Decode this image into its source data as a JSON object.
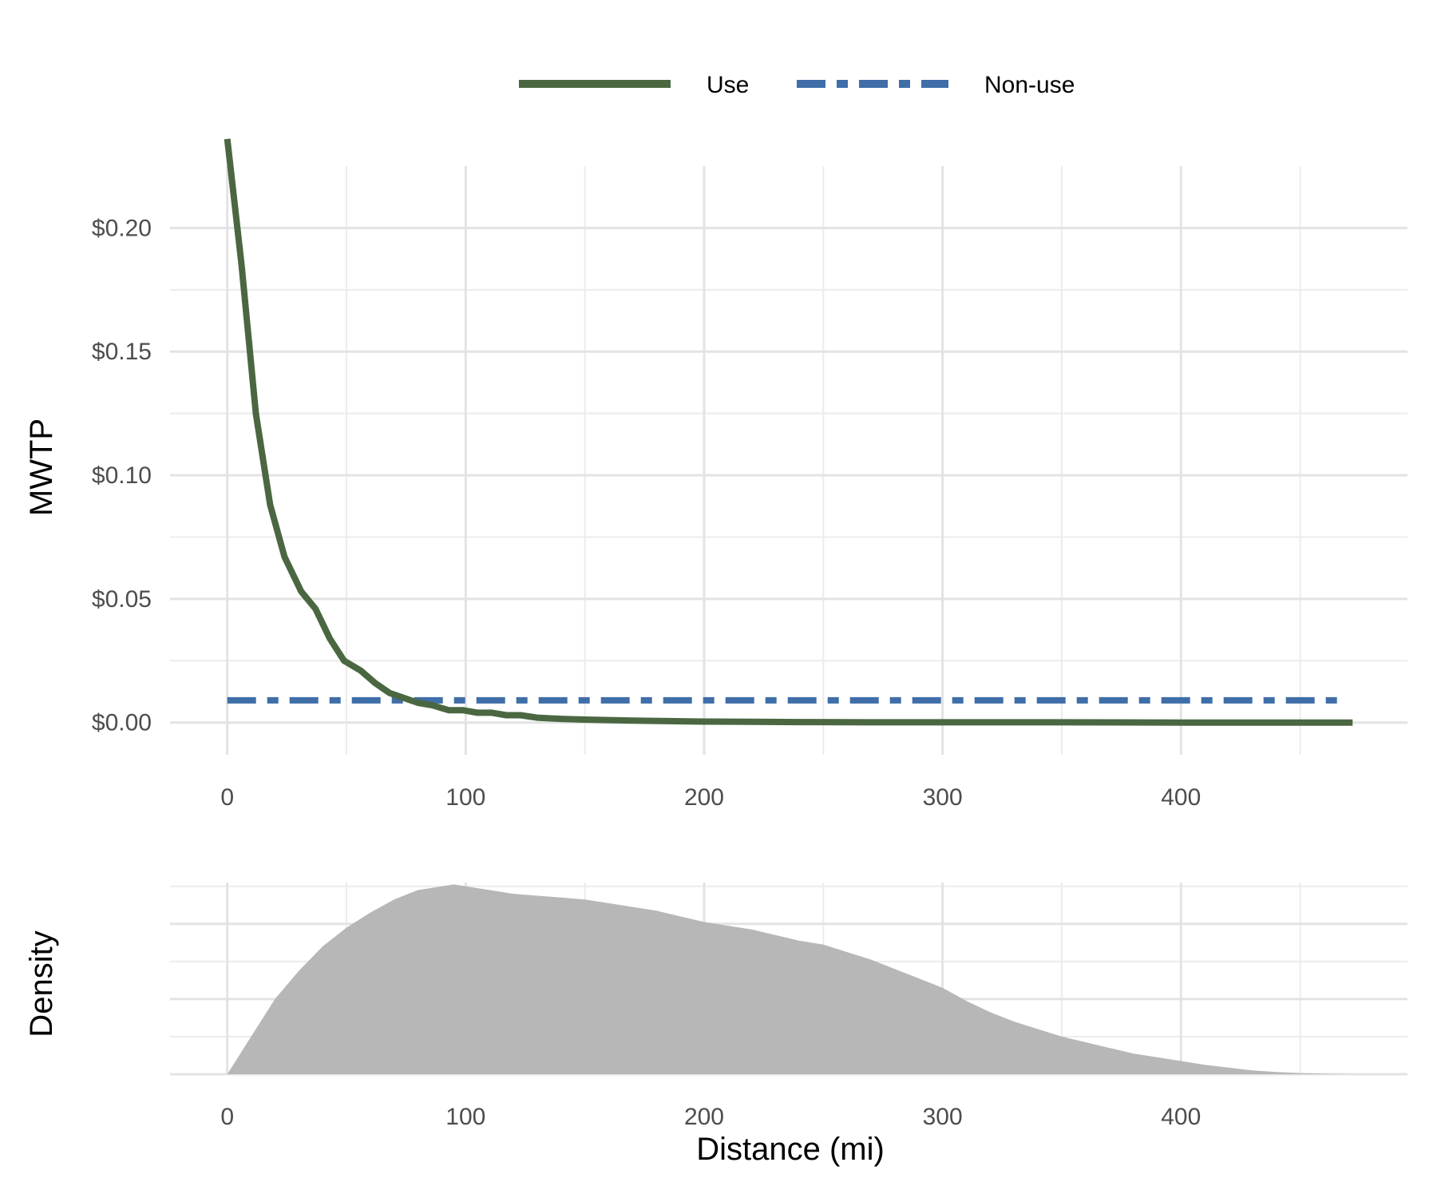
{
  "legend": {
    "items": [
      {
        "label": "Use",
        "color": "#4a6741",
        "style": "solid"
      },
      {
        "label": "Non-use",
        "color": "#3f6ea8",
        "style": "dashed"
      }
    ]
  },
  "chart_data": [
    {
      "type": "line",
      "panel": "top",
      "ylabel": "MWTP",
      "xlim": [
        -24,
        495
      ],
      "ylim": [
        -0.013,
        0.225
      ],
      "x_ticks": [
        0,
        100,
        200,
        300,
        400
      ],
      "x_tick_labels": [
        "0",
        "100",
        "200",
        "300",
        "400"
      ],
      "y_ticks": [
        0,
        0.05,
        0.1,
        0.15,
        0.2
      ],
      "y_tick_labels": [
        "$0.00",
        "$0.05",
        "$0.10",
        "$0.15",
        "$0.20"
      ],
      "grid": true,
      "series": [
        {
          "name": "Use",
          "color": "#4a6741",
          "style": "solid",
          "x": [
            0,
            6,
            12,
            18,
            24,
            31,
            37,
            43,
            49,
            56,
            62,
            68,
            74,
            80,
            86,
            93,
            99,
            105,
            111,
            117,
            123,
            130,
            140,
            150,
            160,
            170,
            185,
            200,
            220,
            240,
            270,
            300,
            350,
            400,
            472
          ],
          "y": [
            0.236,
            0.185,
            0.125,
            0.088,
            0.067,
            0.053,
            0.046,
            0.034,
            0.025,
            0.021,
            0.016,
            0.012,
            0.01,
            0.008,
            0.007,
            0.005,
            0.005,
            0.004,
            0.004,
            0.003,
            0.003,
            0.002,
            0.0015,
            0.0012,
            0.001,
            0.0008,
            0.0006,
            0.0004,
            0.0003,
            0.0002,
            0.0001,
            0.0001,
            0.0001,
            0.0,
            0.0
          ]
        },
        {
          "name": "Non-use",
          "color": "#3f6ea8",
          "style": "dashed",
          "x": [
            0,
            468
          ],
          "y": [
            0.009,
            0.009
          ]
        }
      ]
    },
    {
      "type": "area",
      "panel": "bottom",
      "xlabel": "Distance (mi)",
      "ylabel": "Density",
      "xlim": [
        -24,
        495
      ],
      "ylim": [
        0,
        1.02
      ],
      "x_ticks": [
        0,
        100,
        200,
        300,
        400
      ],
      "x_tick_labels": [
        "0",
        "100",
        "200",
        "300",
        "400"
      ],
      "y_ticks": [
        0,
        0.2,
        0.4,
        0.6,
        0.8,
        1.0
      ],
      "y_tick_labels": [
        "",
        "",
        "",
        "",
        "",
        ""
      ],
      "grid": true,
      "fill_color": "#b3b3b3",
      "series": [
        {
          "x": [
            0,
            10,
            20,
            30,
            40,
            50,
            60,
            70,
            80,
            90,
            95,
            100,
            110,
            120,
            130,
            140,
            150,
            160,
            170,
            180,
            190,
            200,
            210,
            220,
            230,
            240,
            250,
            260,
            270,
            280,
            290,
            300,
            310,
            320,
            330,
            340,
            350,
            360,
            370,
            380,
            390,
            400,
            410,
            420,
            430,
            440,
            450,
            460,
            470
          ],
          "y": [
            0.0,
            0.2,
            0.4,
            0.55,
            0.68,
            0.78,
            0.86,
            0.93,
            0.98,
            1.0,
            1.01,
            1.0,
            0.98,
            0.96,
            0.95,
            0.94,
            0.93,
            0.91,
            0.89,
            0.87,
            0.84,
            0.81,
            0.79,
            0.77,
            0.74,
            0.71,
            0.69,
            0.65,
            0.61,
            0.56,
            0.51,
            0.46,
            0.39,
            0.33,
            0.28,
            0.24,
            0.2,
            0.17,
            0.14,
            0.11,
            0.09,
            0.07,
            0.05,
            0.035,
            0.02,
            0.012,
            0.006,
            0.002,
            0.0
          ]
        }
      ]
    }
  ]
}
